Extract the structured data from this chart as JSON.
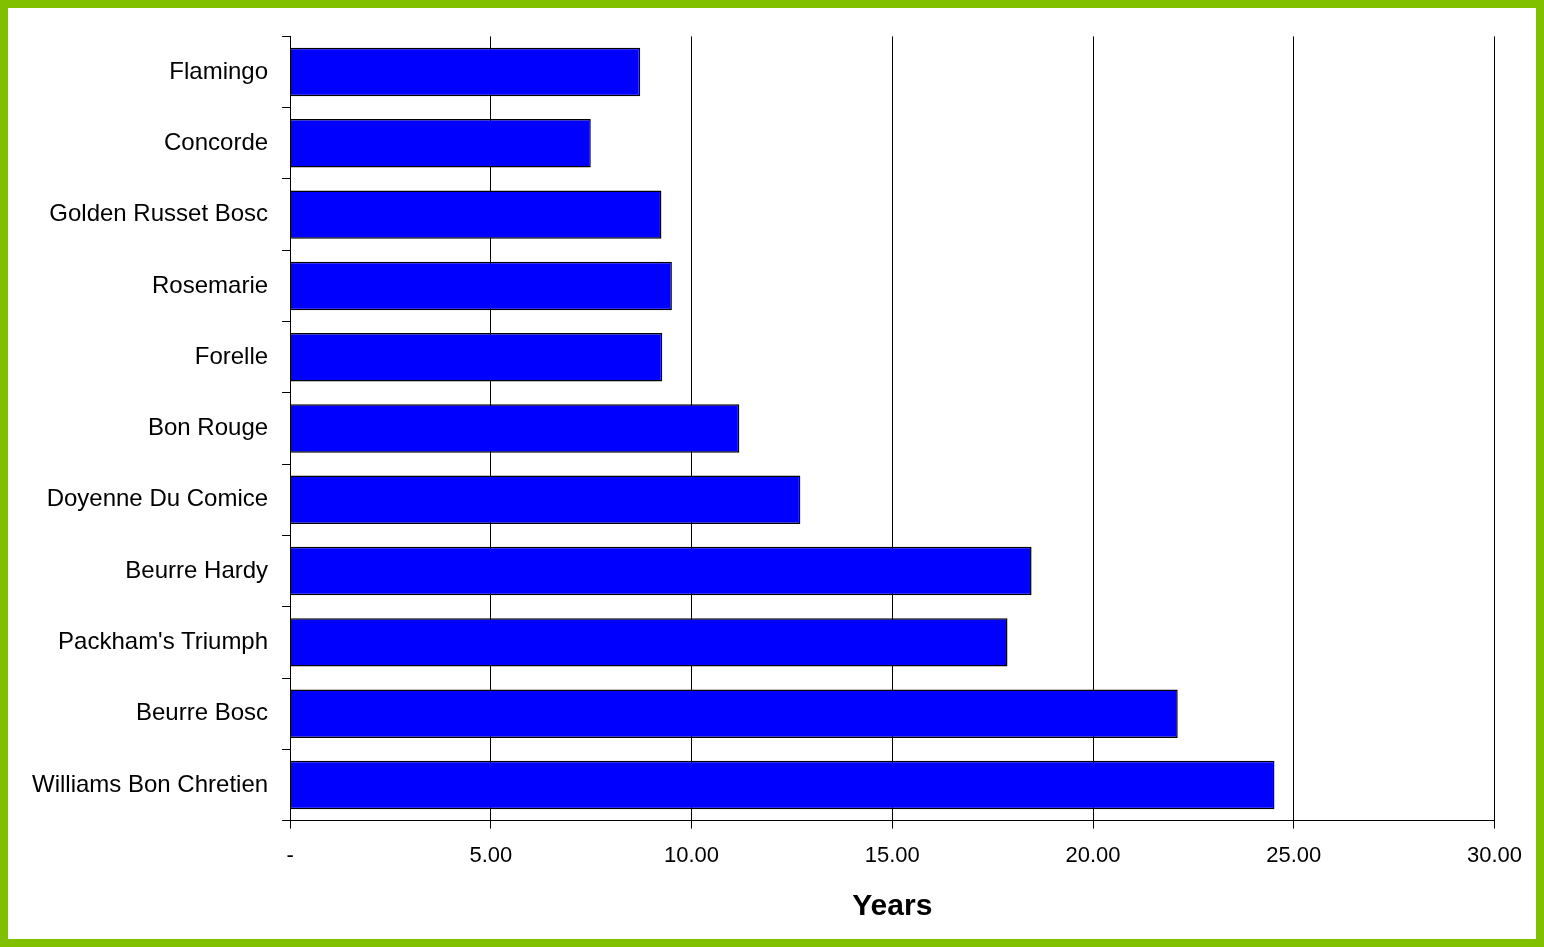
{
  "chart_data": {
    "type": "bar",
    "orientation": "horizontal",
    "xlabel": "Years",
    "categories": [
      "Flamingo",
      "Concorde",
      "Golden Russet Bosc",
      "Rosemarie",
      "Forelle",
      "Bon Rouge",
      "Doyenne Du Comice",
      "Beurre Hardy",
      "Packham's Triumph",
      "Beurre Bosc",
      "Williams Bon Chretien"
    ],
    "values": [
      8.72,
      7.49,
      9.25,
      9.51,
      9.27,
      11.19,
      12.71,
      18.47,
      17.87,
      22.11,
      24.52
    ],
    "color": "#0000ff",
    "xlim": [
      0,
      30
    ],
    "xticks": [
      {
        "value": 0,
        "label": "-"
      },
      {
        "value": 5,
        "label": "5.00"
      },
      {
        "value": 10,
        "label": "10.00"
      },
      {
        "value": 15,
        "label": "15.00"
      },
      {
        "value": 20,
        "label": "20.00"
      },
      {
        "value": 25,
        "label": "25.00"
      },
      {
        "value": 30,
        "label": "30.00"
      }
    ],
    "grid": "x",
    "legend": false
  }
}
